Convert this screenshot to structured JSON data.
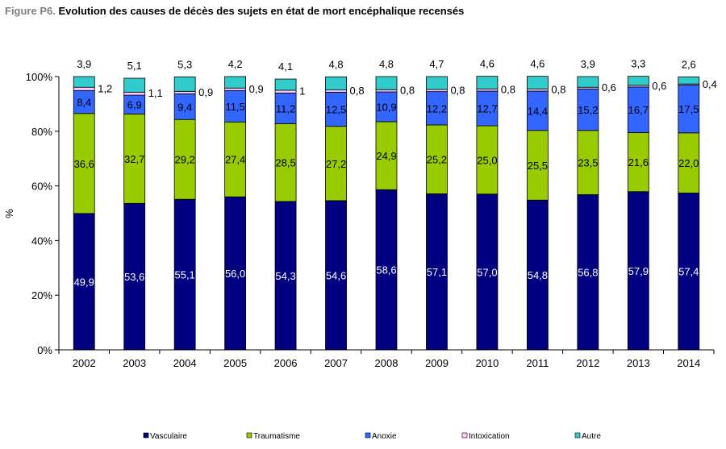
{
  "title": {
    "figure_label": "Figure P6.",
    "text": "Evolution des causes de décès des sujets en état de mort encéphalique recensés"
  },
  "chart_data": {
    "type": "bar",
    "stacked": true,
    "categories": [
      "2002",
      "2003",
      "2004",
      "2005",
      "2006",
      "2007",
      "2008",
      "2009",
      "2010",
      "2011",
      "2012",
      "2013",
      "2014"
    ],
    "ylabel": "%",
    "ylim": [
      0,
      100
    ],
    "yticks": [
      0,
      20,
      40,
      60,
      80,
      100
    ],
    "ytick_labels": [
      "0%",
      "20%",
      "40%",
      "60%",
      "80%",
      "100%"
    ],
    "legend_position": "bottom",
    "grid": false,
    "series": [
      {
        "name": "Vasculaire",
        "color": "#000080",
        "values": [
          49.9,
          53.6,
          55.1,
          56.0,
          54.3,
          54.6,
          58.6,
          57.1,
          57.0,
          54.8,
          56.8,
          57.9,
          57.4
        ],
        "labels": [
          "49,9",
          "53,6",
          "55,1",
          "56,0",
          "54,3",
          "54,6",
          "58,6",
          "57,1",
          "57,0",
          "54,8",
          "56,8",
          "57,9",
          "57,4"
        ]
      },
      {
        "name": "Traumatisme",
        "color": "#99cc00",
        "values": [
          36.6,
          32.7,
          29.2,
          27.4,
          28.5,
          27.2,
          24.9,
          25.2,
          25.0,
          25.5,
          23.5,
          21.6,
          22.0
        ],
        "labels": [
          "36,6",
          "32,7",
          "29,2",
          "27,4",
          "28,5",
          "27,2",
          "24,9",
          "25,2",
          "25,0",
          "25,5",
          "23,5",
          "21,6",
          "22,0"
        ]
      },
      {
        "name": "Anoxie",
        "color": "#3366ff",
        "values": [
          8.4,
          6.9,
          9.4,
          11.5,
          11.2,
          12.5,
          10.9,
          12.2,
          12.7,
          14.4,
          15.2,
          16.7,
          17.5
        ],
        "labels": [
          "8,4",
          "6,9",
          "9,4",
          "11,5",
          "11,2",
          "12,5",
          "10,9",
          "12,2",
          "12,7",
          "14,4",
          "15,2",
          "16,7",
          "17,5"
        ]
      },
      {
        "name": "Intoxication",
        "color": "#ffccff",
        "values": [
          1.2,
          1.1,
          0.9,
          0.9,
          1.0,
          0.8,
          0.8,
          0.8,
          0.8,
          0.8,
          0.6,
          0.6,
          0.4
        ],
        "labels": [
          "1,2",
          "1,1",
          "0,9",
          "0,9",
          "1",
          "0,8",
          "0,8",
          "0,8",
          "0,8",
          "0,8",
          "0,6",
          "0,6",
          "0,4"
        ]
      },
      {
        "name": "Autre",
        "color": "#33cccc",
        "values": [
          3.9,
          5.1,
          5.3,
          4.2,
          4.1,
          4.8,
          4.8,
          4.7,
          4.6,
          4.6,
          3.9,
          3.3,
          2.6
        ],
        "labels": [
          "3,9",
          "5,1",
          "5,3",
          "4,2",
          "4,1",
          "4,8",
          "4,8",
          "4,7",
          "4,6",
          "4,6",
          "3,9",
          "3,3",
          "2,6"
        ]
      }
    ]
  }
}
